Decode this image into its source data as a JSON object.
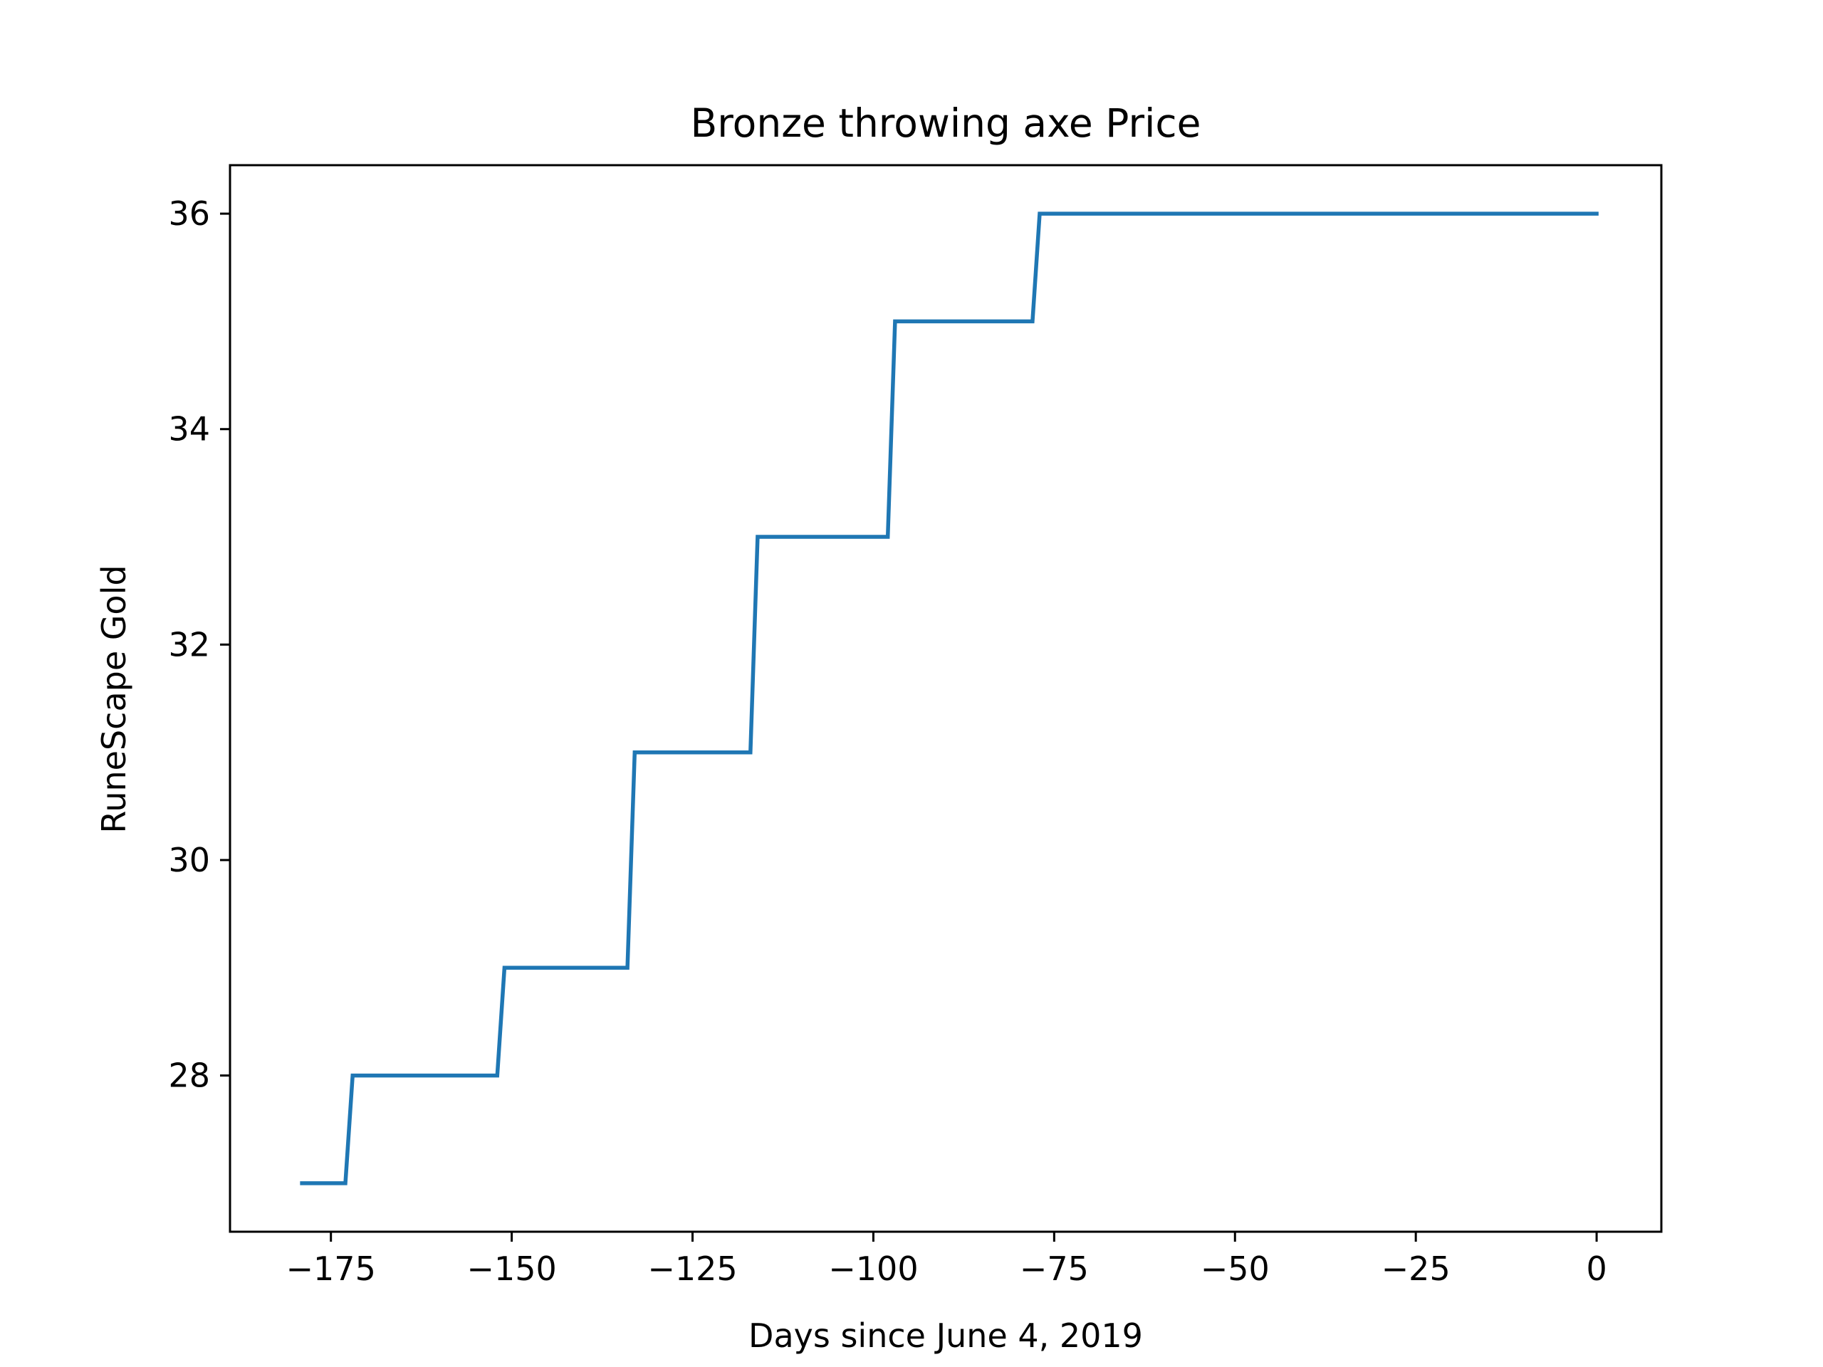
{
  "chart_data": {
    "type": "line",
    "title": "Bronze throwing axe Price",
    "xlabel": "Days since June 4, 2019",
    "ylabel": "RuneScape Gold",
    "xlim": [
      -188.95,
      8.95
    ],
    "ylim": [
      26.55,
      36.45
    ],
    "xticks": [
      -175,
      -150,
      -125,
      -100,
      -75,
      -50,
      -25,
      0
    ],
    "xtick_labels": [
      "−175",
      "−150",
      "−125",
      "−100",
      "−75",
      "−50",
      "−25",
      "0"
    ],
    "yticks": [
      28,
      30,
      32,
      34,
      36
    ],
    "ytick_labels": [
      "28",
      "30",
      "32",
      "34",
      "36"
    ],
    "grid": false,
    "series": [
      {
        "color": "#1f77b4",
        "x": [
          -179,
          -173,
          -172,
          -152,
          -151,
          -134,
          -133,
          -117,
          -116,
          -98,
          -97,
          -78,
          -77,
          0
        ],
        "y": [
          27,
          27,
          28,
          28,
          29,
          29,
          31,
          31,
          33,
          33,
          35,
          35,
          36,
          36
        ]
      }
    ]
  }
}
